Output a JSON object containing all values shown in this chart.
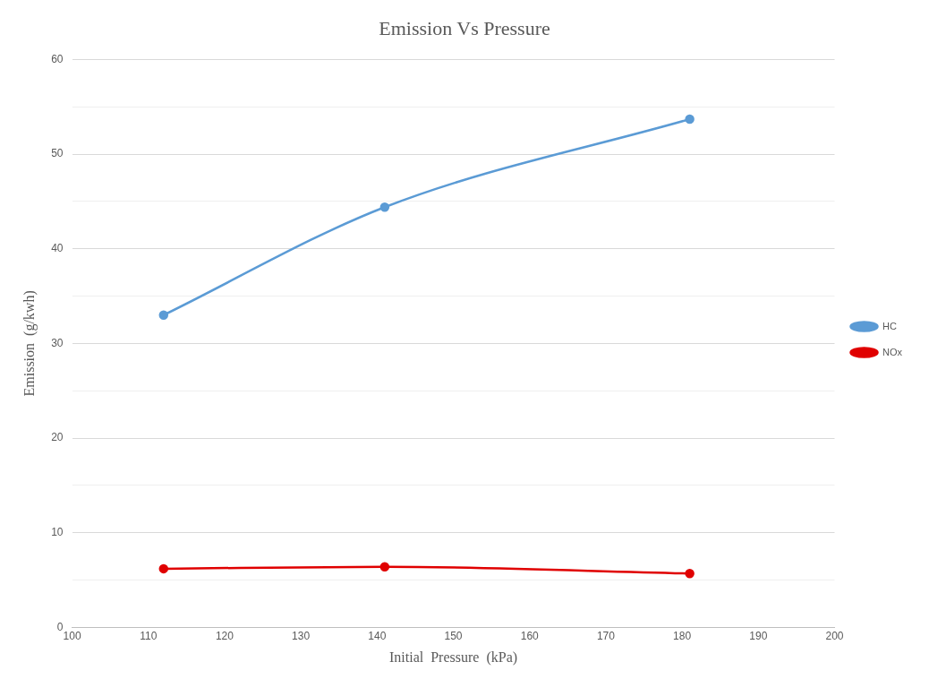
{
  "chart_data": {
    "type": "line",
    "title": "Emission Vs Pressure",
    "xlabel": "Initial  Pressure  (kPa)",
    "ylabel": "Emission  (g/kwh)",
    "x": [
      112,
      141,
      181
    ],
    "series": [
      {
        "name": "HC",
        "color": "#5b9bd5",
        "values": [
          33.0,
          44.4,
          53.7
        ]
      },
      {
        "name": "NOx",
        "color": "#e00000",
        "values": [
          6.2,
          6.4,
          5.7
        ]
      }
    ],
    "xlim": [
      100,
      200
    ],
    "xticks": [
      100,
      110,
      120,
      130,
      140,
      150,
      160,
      170,
      180,
      190,
      200
    ],
    "ylim": [
      0,
      60
    ],
    "yticks": [
      0,
      {
        "value": 5,
        "label": null
      },
      10,
      {
        "value": 15,
        "label": null
      },
      20,
      {
        "value": 25,
        "label": null
      },
      30,
      {
        "value": 35,
        "label": null
      },
      40,
      {
        "value": 45,
        "label": null
      },
      50,
      {
        "value": 55,
        "label": null
      },
      60
    ],
    "grid": "y",
    "legend": "right",
    "marker": "circle",
    "line_style": "solid"
  }
}
